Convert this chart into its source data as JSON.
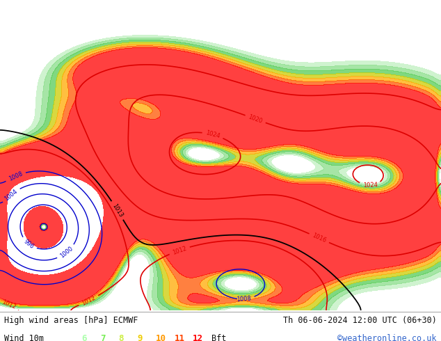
{
  "title_left": "High wind areas [hPa] ECMWF",
  "title_right": "Th 06-06-2024 12:00 UTC (06+30)",
  "subtitle_left": "Wind 10m",
  "legend_values": [
    "6",
    "7",
    "8",
    "9",
    "10",
    "11",
    "12"
  ],
  "legend_colors": [
    "#aaffaa",
    "#77ee55",
    "#ccee44",
    "#eecc00",
    "#ff9900",
    "#ff4400",
    "#ff0000"
  ],
  "legend_suffix": "Bft",
  "watermark": "©weatheronline.co.uk",
  "watermark_color": "#3366cc",
  "bg_color": "#ffffff",
  "map_bg": "#e8e8e8",
  "ocean_color": "#e0e8f0",
  "land_color": "#c8e878",
  "aus_color": "#b8e050",
  "text_color": "#000000",
  "lon_min": 85,
  "lon_max": 185,
  "lat_min": -62,
  "lat_max": 12,
  "red_isobar_color": "#dd0000",
  "blue_isobar_color": "#0000cc",
  "black_isobar_color": "#000000"
}
